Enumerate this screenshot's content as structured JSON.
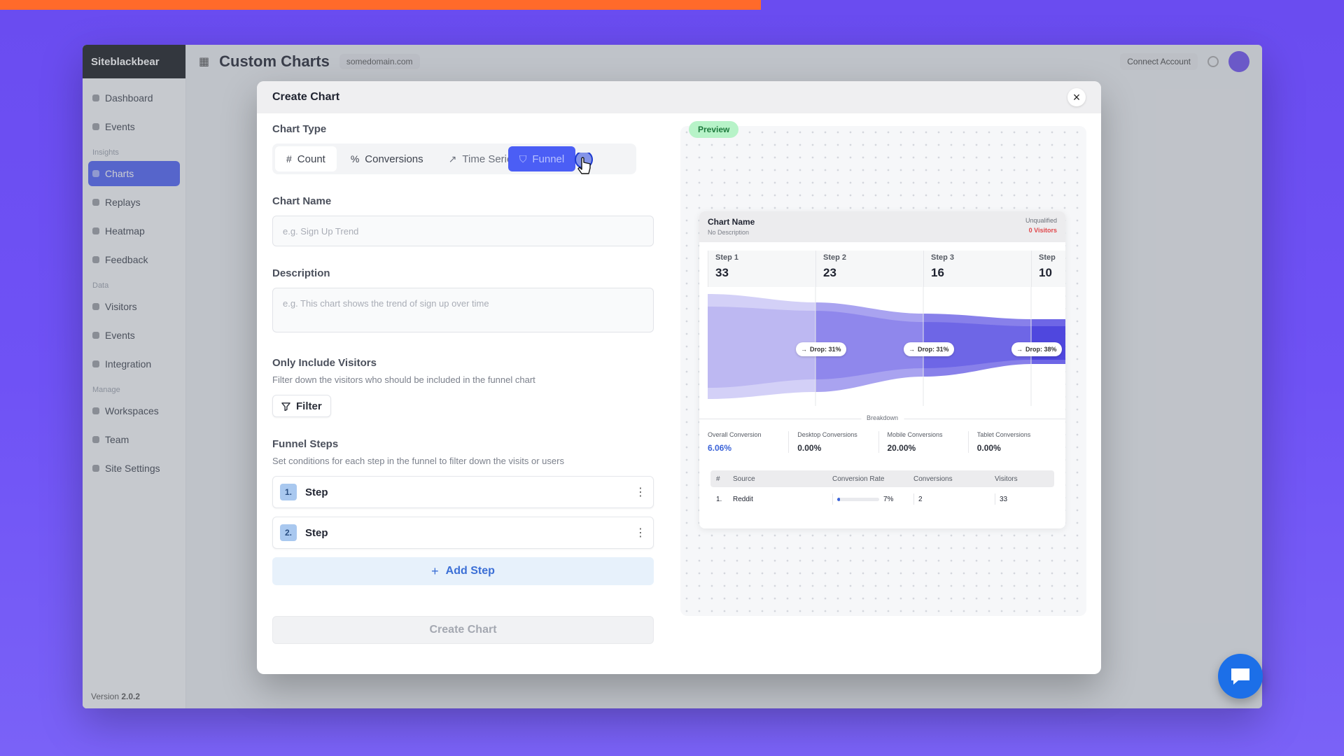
{
  "top_progress": {
    "value": 0.566,
    "color": "#ff6a2a"
  },
  "app": {
    "logo": "Siteblackbear",
    "title": "Custom Charts",
    "chip": "somedomain.com",
    "header_button": "Connect Account",
    "version_label": "Version",
    "version": "2.0.2",
    "nav": [
      {
        "label": "Dashboard",
        "active": false
      },
      {
        "label": "Events",
        "active": false
      },
      {
        "group": "Insights"
      },
      {
        "label": "Charts",
        "active": true
      },
      {
        "label": "Replays",
        "active": false
      },
      {
        "label": "Heatmap",
        "active": false
      },
      {
        "label": "Feedback",
        "active": false
      },
      {
        "group": "Data"
      },
      {
        "label": "Visitors",
        "active": false
      },
      {
        "label": "Events",
        "active": false
      },
      {
        "label": "Integration",
        "active": false
      },
      {
        "group": "Manage"
      },
      {
        "label": "Workspaces",
        "active": false
      },
      {
        "label": "Team",
        "active": false
      },
      {
        "label": "Site Settings",
        "active": false
      }
    ]
  },
  "modal": {
    "title": "Create Chart",
    "close_icon": "×",
    "chart_type_label": "Chart Type",
    "chart_types": [
      {
        "label": "Count",
        "icon": "#"
      },
      {
        "label": "Conversions",
        "icon": "%"
      },
      {
        "label": "Time Series",
        "icon": "↗"
      },
      {
        "label": "Funnel",
        "icon": "⛉"
      }
    ],
    "chart_name_label": "Chart Name",
    "chart_name_placeholder": "e.g. Sign Up Trend",
    "description_label": "Description",
    "description_placeholder": "e.g. This chart shows the trend of sign up over time",
    "visitors_label": "Only Include Visitors",
    "visitors_help": "Filter down the visitors who should be included in the funnel chart",
    "filter_button": "Filter",
    "funnel_steps_label": "Funnel Steps",
    "funnel_steps_help": "Set conditions for each step in the funnel to filter down the visits or users",
    "steps": [
      {
        "num": "1.",
        "label": "Step"
      },
      {
        "num": "2.",
        "label": "Step"
      }
    ],
    "add_step": "Add Step",
    "create_button": "Create Chart"
  },
  "preview": {
    "badge": "Preview",
    "card_title": "Chart Name",
    "card_sub": "No Description",
    "unqualified": "Unqualified",
    "visitors": "0 Visitors",
    "steps": [
      {
        "name": "Step 1",
        "value": "33"
      },
      {
        "name": "Step 2",
        "value": "23"
      },
      {
        "name": "Step 3",
        "value": "16"
      },
      {
        "name": "Step",
        "value": "10"
      }
    ],
    "drops": [
      "Drop: 31%",
      "Drop: 31%",
      "Drop: 38%"
    ],
    "breakdown_label": "Breakdown",
    "metrics": [
      {
        "label": "Overall Conversion",
        "value": "6.06%",
        "accent": true
      },
      {
        "label": "Desktop Conversions",
        "value": "0.00%",
        "accent": false
      },
      {
        "label": "Mobile Conversions",
        "value": "20.00%",
        "accent": false
      },
      {
        "label": "Tablet Conversions",
        "value": "0.00%",
        "accent": false
      }
    ],
    "table": {
      "headers": [
        "#",
        "Source",
        "Conversion Rate",
        "Conversions",
        "Visitors"
      ],
      "rows": [
        {
          "num": "1.",
          "source": "Reddit",
          "rate": "7%",
          "rate_value": 0.07,
          "conversions": "2",
          "visitors": "33"
        }
      ]
    }
  },
  "colors": {
    "accent": "#4b5ef5",
    "funnel_light": "#c9c6f5",
    "funnel_dark": "#6f68e8",
    "preview_badge": "#b7f3c8",
    "chat_fab": "#1c6fe8"
  },
  "chat_icon": "chat-bubble-icon"
}
